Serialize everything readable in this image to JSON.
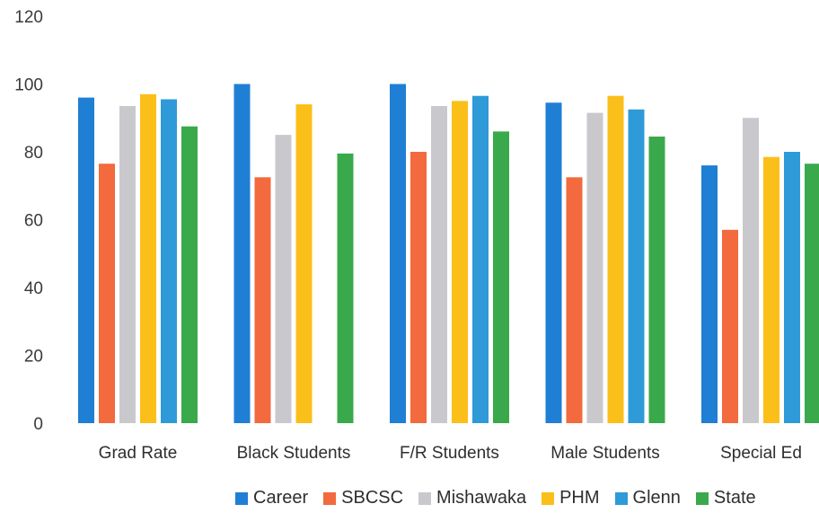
{
  "chart_data": {
    "type": "bar",
    "categories": [
      "Grad Rate",
      "Black Students",
      "F/R Students",
      "Male Students",
      "Special Ed"
    ],
    "series": [
      {
        "name": "Career",
        "color": "#1f7fd4",
        "values": [
          96,
          100,
          100,
          94.5,
          76
        ]
      },
      {
        "name": "SBCSC",
        "color": "#f26a3d",
        "values": [
          76.5,
          72.5,
          80,
          72.5,
          57
        ]
      },
      {
        "name": "Mishawaka",
        "color": "#c9c9cd",
        "values": [
          93.5,
          85,
          93.5,
          91.5,
          90
        ]
      },
      {
        "name": "PHM",
        "color": "#fbbf1a",
        "values": [
          97,
          94,
          95,
          96.5,
          78.5
        ]
      },
      {
        "name": "Glenn",
        "color": "#2e9ad8",
        "values": [
          95.5,
          null,
          96.5,
          92.5,
          80
        ]
      },
      {
        "name": "State",
        "color": "#3aa94c",
        "values": [
          87.5,
          79.5,
          86,
          84.5,
          76.5
        ]
      }
    ],
    "yticks": [
      "0",
      "20",
      "40",
      "60",
      "80",
      "100",
      "120"
    ],
    "ylim": [
      0,
      120
    ],
    "title": "",
    "xlabel": "",
    "ylabel": "",
    "grid": false,
    "legend_position": "bottom"
  }
}
